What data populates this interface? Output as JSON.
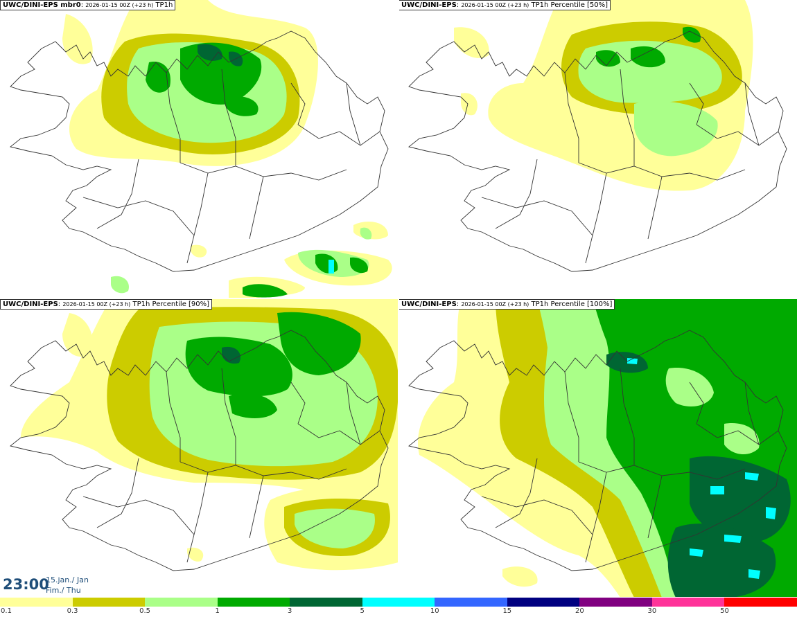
{
  "panels": [
    {
      "model": "UWC/DINI-EPS mbr0",
      "run": "2026-01-15 00Z (+23 h)",
      "field": "TP1h"
    },
    {
      "model": "UWC/DINI-EPS",
      "run": "2026-01-15 00Z (+23 h)",
      "field": "TP1h Percentile [50%]"
    },
    {
      "model": "UWC/DINI-EPS",
      "run": "2026-01-15 00Z (+23 h)",
      "field": "TP1h Percentile [90%]"
    },
    {
      "model": "UWC/DINI-EPS",
      "run": "2026-01-15 00Z (+23 h)",
      "field": "TP1h Percentile [100%]"
    }
  ],
  "valid_time": {
    "time": "23:00",
    "date_line1": "15.jan./ Jan",
    "date_line2": "Fim./ Thu"
  },
  "legend": {
    "labels": [
      "0.1",
      "0.3",
      "0.5",
      "1",
      "3",
      "5",
      "10",
      "15",
      "20",
      "30",
      "50"
    ],
    "colors": [
      "#ffff99",
      "#cccc00",
      "#aaff88",
      "#00aa00",
      "#006633",
      "#00ffff",
      "#3366ff",
      "#000080",
      "#800080",
      "#ff3399",
      "#ff0000"
    ]
  },
  "map_colors": {
    "l1": "#ffff99",
    "l2": "#cccc00",
    "l3": "#aaff88",
    "l4": "#00aa00",
    "l5": "#006633",
    "l6": "#00ffff"
  }
}
